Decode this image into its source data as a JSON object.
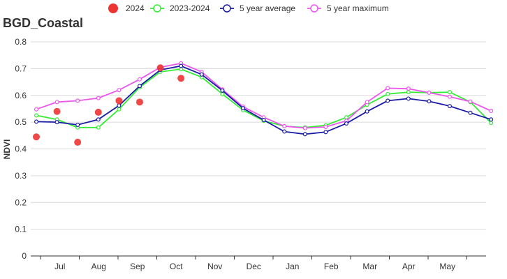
{
  "chart_data": {
    "type": "line",
    "title": "BGD_Coastal",
    "ylabel": "NDVI",
    "xlabel": "",
    "ylim": [
      0,
      0.8
    ],
    "yticks": [
      "0",
      "0.1",
      "0.2",
      "0.3",
      "0.4",
      "0.5",
      "0.6",
      "0.7",
      "0.8"
    ],
    "month_labels": [
      "Jul",
      "Aug",
      "Sep",
      "Oct",
      "Nov",
      "Dec",
      "Jan",
      "Feb",
      "Mar",
      "Apr",
      "May"
    ],
    "grid": "horizontal",
    "legend_position": "top",
    "series": [
      {
        "name": "2024",
        "style": "scatter",
        "color": "#ee3333",
        "values": [
          0.445,
          0.54,
          0.425,
          0.537,
          0.58,
          0.575,
          0.703,
          0.664
        ]
      },
      {
        "name": "2023-2024",
        "style": "line",
        "color": "#33ee33",
        "values": [
          0.525,
          0.51,
          0.48,
          0.48,
          0.548,
          0.63,
          0.688,
          0.698,
          0.668,
          0.605,
          0.545,
          0.505,
          0.485,
          0.48,
          0.488,
          0.518,
          0.565,
          0.605,
          0.612,
          0.61,
          0.612,
          0.575,
          0.497
        ]
      },
      {
        "name": "5 year average",
        "style": "line",
        "color": "#1a1aa6",
        "values": [
          0.502,
          0.5,
          0.49,
          0.51,
          0.562,
          0.635,
          0.695,
          0.71,
          0.678,
          0.618,
          0.552,
          0.508,
          0.465,
          0.455,
          0.463,
          0.495,
          0.54,
          0.58,
          0.588,
          0.578,
          0.56,
          0.535,
          0.51
        ]
      },
      {
        "name": "5 year maximum",
        "style": "line",
        "color": "#ee55ee",
        "values": [
          0.548,
          0.575,
          0.58,
          0.59,
          0.62,
          0.66,
          0.705,
          0.72,
          0.688,
          0.622,
          0.558,
          0.518,
          0.485,
          0.478,
          0.482,
          0.505,
          0.575,
          0.627,
          0.625,
          0.61,
          0.595,
          0.577,
          0.542
        ]
      }
    ]
  }
}
